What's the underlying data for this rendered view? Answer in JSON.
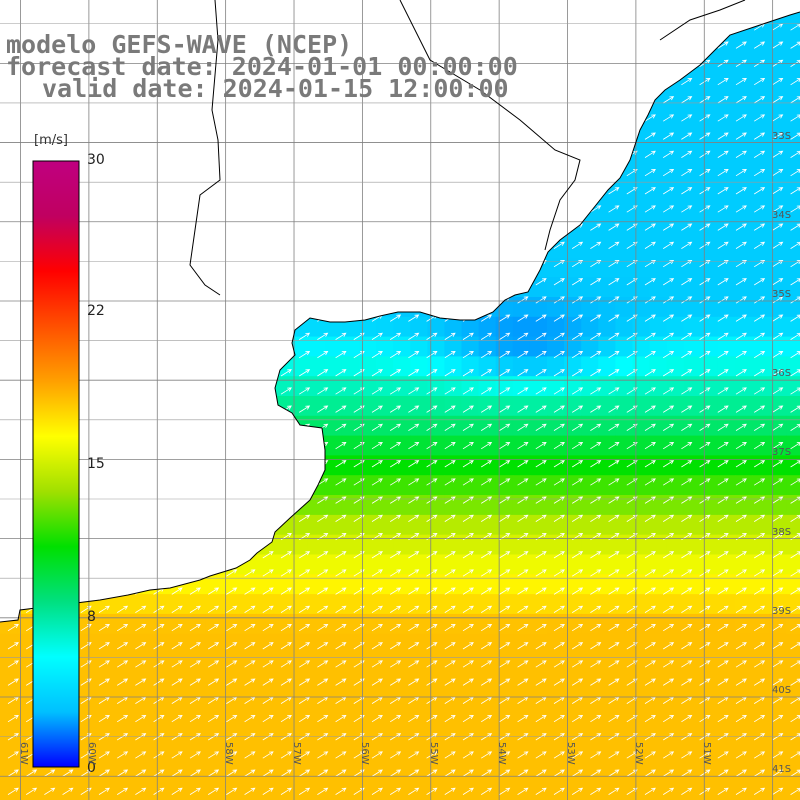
{
  "title": {
    "line1": "modelo GEFS-WAVE (NCEP)",
    "line2": "forecast date: 2024-01-01 00:00:00",
    "line3": "valid date: 2024-01-15 12:00:00"
  },
  "colorbar": {
    "unit": "[m/s]",
    "min": 0,
    "max": 30,
    "ticks": [
      {
        "value": 30,
        "label": "30"
      },
      {
        "value": 22,
        "label": "22"
      },
      {
        "value": 15,
        "label": "15"
      },
      {
        "value": 8,
        "label": "8"
      },
      {
        "value": 0,
        "label": "0"
      }
    ],
    "colors": [
      "#0000ff",
      "#00c0ff",
      "#00ffff",
      "#00e080",
      "#00e000",
      "#a0e000",
      "#ffff00",
      "#ffa000",
      "#ff5000",
      "#ff0000",
      "#c00060",
      "#c00080"
    ]
  },
  "map": {
    "extent": {
      "lon_min": -61.3,
      "lon_max": -49.6,
      "lat_min": -41.3,
      "lat_max": -31.2
    },
    "grid_lons": [
      -61,
      -60,
      -59,
      -58,
      -57,
      -56,
      -55,
      -54,
      -53,
      -52,
      -51,
      -50
    ],
    "grid_lats": [
      -41,
      -40,
      -39,
      -38,
      -37,
      -36,
      -35,
      -34,
      -33,
      -32
    ],
    "lat_labels": [
      {
        "lat": -33,
        "text": "33S"
      },
      {
        "lat": -34,
        "text": "34S"
      },
      {
        "lat": -35,
        "text": "35S"
      },
      {
        "lat": -36,
        "text": "36S"
      },
      {
        "lat": -37,
        "text": "37S"
      },
      {
        "lat": -38,
        "text": "38S"
      },
      {
        "lat": -39,
        "text": "39S"
      },
      {
        "lat": -40,
        "text": "40S"
      },
      {
        "lat": -41,
        "text": "41S"
      }
    ],
    "lon_labels": [
      {
        "lon": -61,
        "text": "61W"
      },
      {
        "lon": -60,
        "text": "60W"
      },
      {
        "lon": -58,
        "text": "58W"
      },
      {
        "lon": -57,
        "text": "57W"
      },
      {
        "lon": -56,
        "text": "56W"
      },
      {
        "lon": -55,
        "text": "55W"
      },
      {
        "lon": -54,
        "text": "54W"
      },
      {
        "lon": -53,
        "text": "53W"
      },
      {
        "lon": -52,
        "text": "52W"
      },
      {
        "lon": -51,
        "text": "51W"
      }
    ],
    "field": {
      "variable": "wind speed",
      "unit": "m/s",
      "wind_direction": "from southwest, arrows pointing northeast",
      "zones": [
        {
          "region": "nearshore Uruguay / south Brazil",
          "speed": 6
        },
        {
          "region": "Rio de la Plata mouth",
          "speed": 8
        },
        {
          "region": "offshore near 36-37S",
          "speed": 12
        },
        {
          "region": "south near 39-41S",
          "speed": 15
        }
      ]
    }
  }
}
